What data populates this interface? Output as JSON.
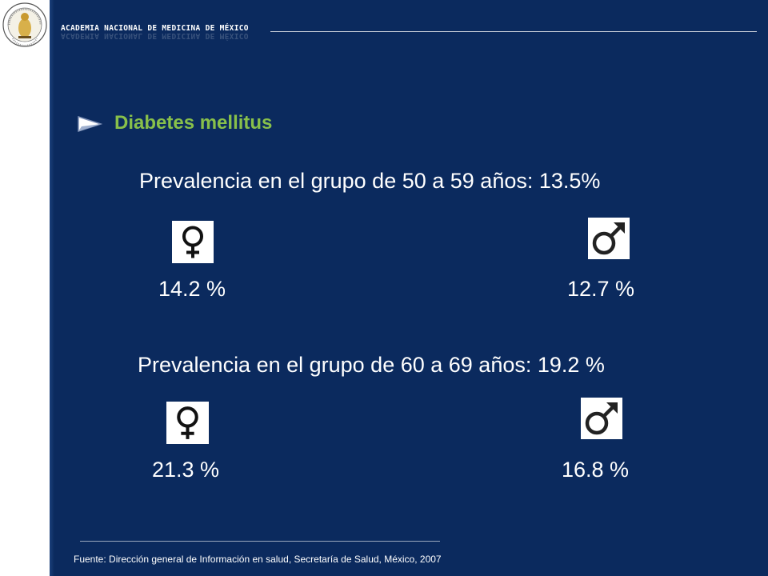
{
  "header": {
    "institution": "ACADEMIA NACIONAL DE MEDICINA DE MÉXICO",
    "logo_icon": "academia-seal-icon"
  },
  "section": {
    "bullet_icon": "arrow-right-icon",
    "title": "Diabetes mellitus"
  },
  "groups": [
    {
      "prevalence_text": "Prevalencia en el grupo de 50 a 59 años: 13.5%",
      "female": {
        "icon": "female-symbol-icon",
        "value": "14.2 %"
      },
      "male": {
        "icon": "male-symbol-icon",
        "value": "12.7 %"
      }
    },
    {
      "prevalence_text": "Prevalencia en el grupo de 60 a 69 años: 19.2 %",
      "female": {
        "icon": "female-symbol-icon",
        "value": "21.3 %"
      },
      "male": {
        "icon": "male-symbol-icon",
        "value": "16.8 %"
      }
    }
  ],
  "footer": {
    "source": "Fuente: Dirección general de Información en salud, Secretaría de Salud, México, 2007"
  },
  "colors": {
    "background": "#0b2a5e",
    "section_title": "#88c04a",
    "text": "#ffffff"
  }
}
